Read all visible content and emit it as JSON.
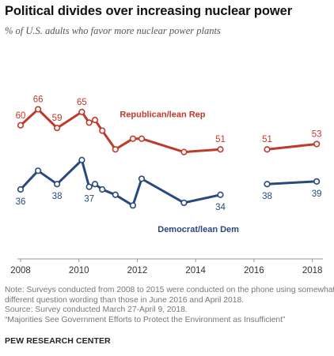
{
  "title": "Political divides over increasing nuclear power",
  "subtitle": "% of U.S. adults who favor more nuclear power plants",
  "notes": [
    "Note: Surveys conducted from 2008 to 2015 were conducted on the phone using somewhat",
    "different question wording than those in June 2016 and April 2018.",
    "Source: Survey conducted March 27-April 9, 2018.",
    "“Majorities See Government Efforts to Protect the Environment as Insufficient”"
  ],
  "source_label": "PEW RESEARCH CENTER",
  "colors": {
    "republican": "#bf3a2b",
    "democrat": "#27497d",
    "axis": "#999999",
    "tick_text": "#333333"
  },
  "chart_data": {
    "type": "line",
    "xlim": [
      2008,
      2018.2
    ],
    "ylim": [
      10,
      75
    ],
    "x_ticks": [
      2008,
      2010,
      2012,
      2014,
      2016,
      2018
    ],
    "x_tick_labels": [
      "2008",
      "2010",
      "2012",
      "2014",
      "2016",
      "2018"
    ],
    "grid": false,
    "series": [
      {
        "name": "Republican/lean Rep",
        "color": "#bf3a2b",
        "segments": [
          {
            "x": [
              2008.0,
              2008.6,
              2009.25,
              2010.1,
              2010.35,
              2010.55,
              2010.8,
              2011.25,
              2011.85,
              2012.15,
              2013.6,
              2014.85
            ],
            "y": [
              60,
              66,
              59,
              65,
              61,
              62,
              58,
              51,
              55,
              55,
              50,
              51
            ]
          },
          {
            "x": [
              2016.45,
              2018.15
            ],
            "y": [
              51,
              53
            ]
          }
        ],
        "labels": [
          {
            "x": 2008.0,
            "y": 60,
            "text": "60"
          },
          {
            "x": 2008.6,
            "y": 66,
            "text": "66"
          },
          {
            "x": 2009.25,
            "y": 59,
            "text": "59"
          },
          {
            "x": 2010.1,
            "y": 65,
            "text": "65"
          },
          {
            "x": 2014.85,
            "y": 51,
            "text": "51"
          },
          {
            "x": 2016.45,
            "y": 51,
            "text": "51"
          },
          {
            "x": 2018.15,
            "y": 53,
            "text": "53"
          }
        ]
      },
      {
        "name": "Democrat/lean Dem",
        "color": "#27497d",
        "segments": [
          {
            "x": [
              2008.0,
              2008.6,
              2009.25,
              2010.1,
              2010.35,
              2010.55,
              2010.8,
              2011.25,
              2011.85,
              2012.15,
              2013.6,
              2014.85
            ],
            "y": [
              36,
              43,
              38,
              47,
              37,
              38,
              36,
              34,
              30,
              40,
              31,
              34
            ]
          },
          {
            "x": [
              2016.45,
              2018.15
            ],
            "y": [
              38,
              39
            ]
          }
        ],
        "labels": [
          {
            "x": 2008.0,
            "y": 36,
            "text": "36"
          },
          {
            "x": 2009.25,
            "y": 38,
            "text": "38"
          },
          {
            "x": 2010.35,
            "y": 37,
            "text": "37"
          },
          {
            "x": 2014.85,
            "y": 34,
            "text": "34"
          },
          {
            "x": 2016.45,
            "y": 38,
            "text": "38"
          },
          {
            "x": 2018.15,
            "y": 39,
            "text": "39"
          }
        ]
      }
    ],
    "series_labels": [
      {
        "series": "Republican/lean Rep",
        "text": "Republican/lean Rep",
        "x": 2011.4,
        "y": 63
      },
      {
        "series": "Democrat/lean Dem",
        "text": "Democrat/lean Dem",
        "x": 2012.7,
        "y": 20
      }
    ]
  }
}
